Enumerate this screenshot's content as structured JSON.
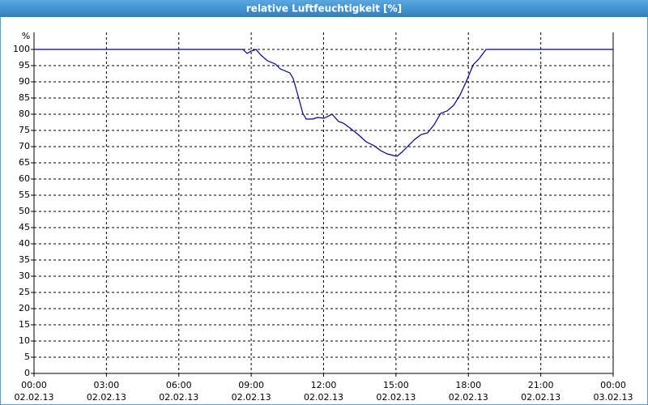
{
  "chart_data": {
    "type": "line",
    "title": "relative Luftfeuchtigkeit [%]",
    "y_label": "%",
    "x": [
      0,
      8.66,
      8.83,
      9.0,
      9.2,
      9.4,
      9.67,
      10.0,
      10.2,
      10.6,
      10.74,
      10.94,
      11.14,
      11.28,
      11.55,
      11.75,
      12.02,
      12.35,
      12.62,
      12.82,
      13.09,
      13.43,
      13.76,
      14.1,
      14.37,
      14.64,
      14.9,
      15.04,
      15.24,
      15.51,
      15.78,
      16.05,
      16.31,
      16.58,
      16.85,
      17.12,
      17.39,
      17.66,
      17.92,
      18.2,
      18.46,
      18.73,
      24
    ],
    "series": [
      {
        "color": "#00008b",
        "values": [
          100,
          100,
          98.75,
          99.5,
          100,
          98.25,
          96.5,
          95.5,
          94,
          92.75,
          91,
          85.75,
          80.25,
          78.5,
          78.5,
          79,
          78.75,
          80,
          77.75,
          77.25,
          75.75,
          73.75,
          71.5,
          70.25,
          68.75,
          67.75,
          67.25,
          67,
          68.25,
          70.25,
          72.25,
          73.75,
          74.25,
          76.75,
          80.25,
          81,
          82.75,
          86,
          90.25,
          95.25,
          97.25,
          100,
          100
        ]
      }
    ],
    "xlim": [
      0,
      24
    ],
    "xticks": [
      {
        "value": 0,
        "label": "00:00"
      },
      {
        "value": 3,
        "label": "03:00"
      },
      {
        "value": 6,
        "label": "06:00"
      },
      {
        "value": 9,
        "label": "09:00"
      },
      {
        "value": 12,
        "label": "12:00"
      },
      {
        "value": 15,
        "label": "15:00"
      },
      {
        "value": 18,
        "label": "18:00"
      },
      {
        "value": 21,
        "label": "21:00"
      },
      {
        "value": 24,
        "label": "00:00"
      }
    ],
    "xtick_dates": [
      "02.02.13",
      "02.02.13",
      "02.02.13",
      "02.02.13",
      "02.02.13",
      "02.02.13",
      "02.02.13",
      "02.02.13",
      "03.02.13"
    ],
    "ylim": [
      0,
      100
    ],
    "yticks": [
      0,
      5,
      10,
      15,
      20,
      25,
      30,
      35,
      40,
      45,
      50,
      55,
      60,
      65,
      70,
      75,
      80,
      85,
      90,
      95,
      100
    ],
    "grid": true
  }
}
